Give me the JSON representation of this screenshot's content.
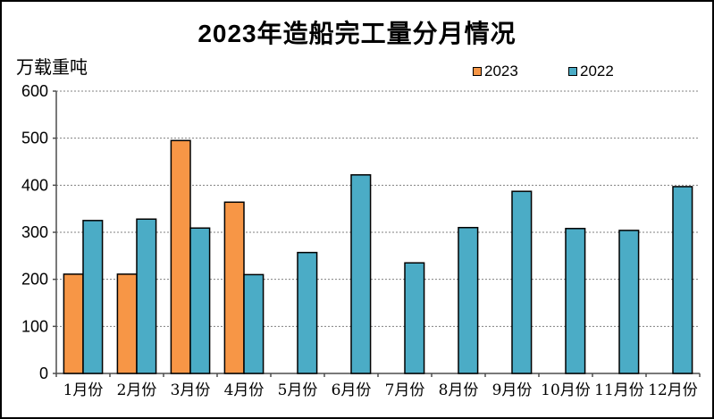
{
  "chart_data": {
    "type": "bar",
    "title": "2023年造船完工量分月情况",
    "unit_label": "万载重吨",
    "xlabel": "",
    "ylabel": "万载重吨",
    "categories": [
      "1月份",
      "2月份",
      "3月份",
      "4月份",
      "5月份",
      "6月份",
      "7月份",
      "8月份",
      "9月份",
      "10月份",
      "11月份",
      "12月份"
    ],
    "series": [
      {
        "name": "2023",
        "color": "#F79646",
        "values": [
          211,
          211,
          495,
          364,
          null,
          null,
          null,
          null,
          null,
          null,
          null,
          null
        ]
      },
      {
        "name": "2022",
        "color": "#4BACC6",
        "values": [
          325,
          328,
          309,
          210,
          257,
          422,
          235,
          310,
          387,
          308,
          304,
          397
        ]
      }
    ],
    "ylim": [
      0,
      600
    ],
    "yticks": [
      0,
      100,
      200,
      300,
      400,
      500,
      600
    ],
    "grid": "horizontal-dashed",
    "legend_position": "top-right",
    "bar_border_color": "#000000",
    "axis_color": "#4d4d4d",
    "gridline_color": "#808080"
  }
}
